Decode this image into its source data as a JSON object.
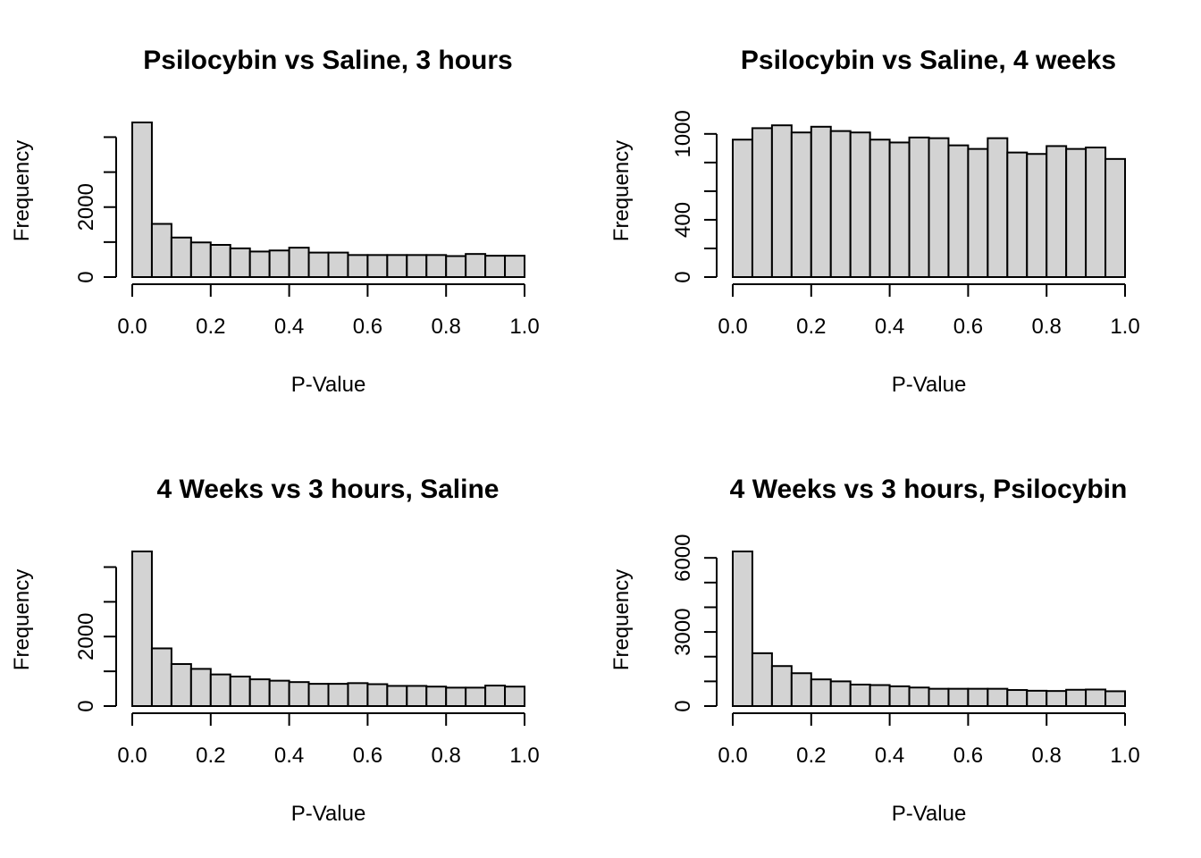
{
  "chart_data": [
    {
      "type": "bar",
      "title": "Psilocybin vs Saline, 3 hours",
      "xlabel": "P-Value",
      "ylabel": "Frequency",
      "bin_edges": [
        0,
        0.05,
        0.1,
        0.15,
        0.2,
        0.25,
        0.3,
        0.35,
        0.4,
        0.45,
        0.5,
        0.55,
        0.6,
        0.65,
        0.7,
        0.75,
        0.8,
        0.85,
        0.9,
        0.95,
        1.0
      ],
      "values": [
        4420,
        1520,
        1130,
        990,
        920,
        820,
        730,
        760,
        840,
        700,
        700,
        630,
        630,
        630,
        630,
        630,
        600,
        660,
        610,
        610
      ],
      "xlim": [
        0,
        1
      ],
      "ylim": [
        0,
        4420
      ],
      "x_ticks": [
        "0.0",
        "0.2",
        "0.4",
        "0.6",
        "0.8",
        "1.0"
      ],
      "y_ticks": [
        0,
        1000,
        2000,
        3000,
        4000
      ],
      "y_tick_labels": [
        "0",
        "",
        "2000",
        "",
        ""
      ]
    },
    {
      "type": "bar",
      "title": "Psilocybin vs Saline, 4 weeks",
      "xlabel": "P-Value",
      "ylabel": "Frequency",
      "bin_edges": [
        0,
        0.05,
        0.1,
        0.15,
        0.2,
        0.25,
        0.3,
        0.35,
        0.4,
        0.45,
        0.5,
        0.55,
        0.6,
        0.65,
        0.7,
        0.75,
        0.8,
        0.85,
        0.9,
        0.95,
        1.0
      ],
      "values": [
        960,
        1040,
        1060,
        1010,
        1050,
        1020,
        1010,
        960,
        940,
        975,
        970,
        920,
        895,
        970,
        870,
        860,
        915,
        895,
        905,
        825
      ],
      "xlim": [
        0,
        1
      ],
      "ylim": [
        0,
        1080
      ],
      "x_ticks": [
        "0.0",
        "0.2",
        "0.4",
        "0.6",
        "0.8",
        "1.0"
      ],
      "y_ticks": [
        0,
        200,
        400,
        600,
        800,
        1000
      ],
      "y_tick_labels": [
        "0",
        "",
        "400",
        "",
        "",
        "1000"
      ]
    },
    {
      "type": "bar",
      "title": "4 Weeks vs 3 hours, Saline",
      "xlabel": "P-Value",
      "ylabel": "Frequency",
      "bin_edges": [
        0,
        0.05,
        0.1,
        0.15,
        0.2,
        0.25,
        0.3,
        0.35,
        0.4,
        0.45,
        0.5,
        0.55,
        0.6,
        0.65,
        0.7,
        0.75,
        0.8,
        0.85,
        0.9,
        0.95,
        1.0
      ],
      "values": [
        4450,
        1660,
        1210,
        1070,
        910,
        850,
        770,
        730,
        690,
        640,
        640,
        660,
        630,
        580,
        580,
        560,
        530,
        530,
        590,
        560
      ],
      "xlim": [
        0,
        1
      ],
      "ylim": [
        0,
        4450
      ],
      "x_ticks": [
        "0.0",
        "0.2",
        "0.4",
        "0.6",
        "0.8",
        "1.0"
      ],
      "y_ticks": [
        0,
        1000,
        2000,
        3000,
        4000
      ],
      "y_tick_labels": [
        "0",
        "",
        "2000",
        "",
        ""
      ]
    },
    {
      "type": "bar",
      "title": "4 Weeks vs 3 hours, Psilocybin",
      "xlabel": "P-Value",
      "ylabel": "Frequency",
      "bin_edges": [
        0,
        0.05,
        0.1,
        0.15,
        0.2,
        0.25,
        0.3,
        0.35,
        0.4,
        0.45,
        0.5,
        0.55,
        0.6,
        0.65,
        0.7,
        0.75,
        0.8,
        0.85,
        0.9,
        0.95,
        1.0
      ],
      "values": [
        6260,
        2140,
        1620,
        1330,
        1080,
        1000,
        870,
        850,
        800,
        750,
        700,
        700,
        700,
        700,
        650,
        620,
        610,
        660,
        670,
        600
      ],
      "xlim": [
        0,
        1
      ],
      "ylim": [
        0,
        6260
      ],
      "x_ticks": [
        "0.0",
        "0.2",
        "0.4",
        "0.6",
        "0.8",
        "1.0"
      ],
      "y_ticks": [
        0,
        1000,
        2000,
        3000,
        4000,
        5000,
        6000
      ],
      "y_tick_labels": [
        "0",
        "",
        "",
        "3000",
        "",
        "",
        "6000"
      ]
    }
  ]
}
